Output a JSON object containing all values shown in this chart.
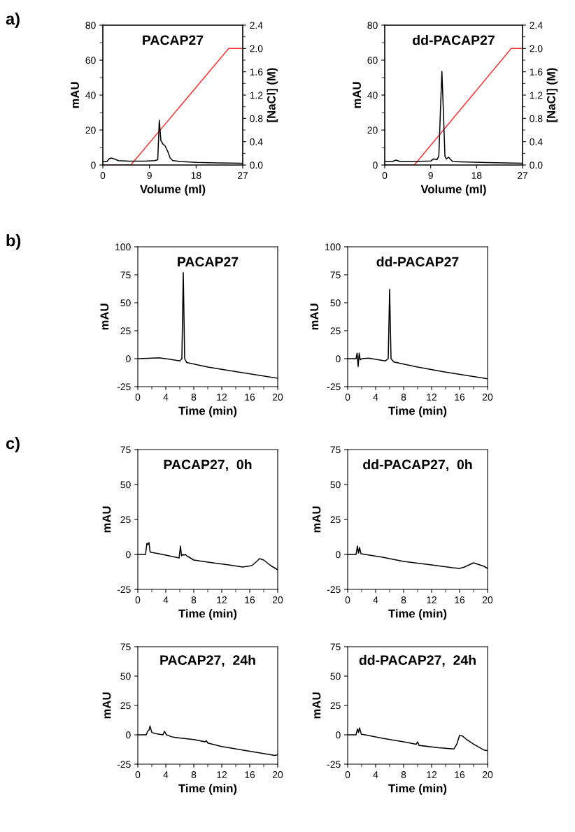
{
  "chart_data": [
    {
      "type": "line",
      "title": "PACAP27",
      "xlabel": "Volume (ml)",
      "ylabel": "mAU",
      "y2label": "[NaCl] (M)",
      "annotations": [
        "a)"
      ],
      "xlim": [
        0,
        27
      ],
      "xticks": [
        0,
        9,
        18,
        27
      ],
      "ylim": [
        0,
        80
      ],
      "yticks": [
        0,
        {
          "value": 10,
          "label": null
        },
        20,
        {
          "value": 30,
          "label": null
        },
        40,
        {
          "value": 50,
          "label": null
        },
        60,
        {
          "value": 70,
          "label": null
        },
        80
      ],
      "y2lim": [
        0,
        2.4
      ],
      "y2ticks": [
        {
          "value": 0,
          "label": "0.0"
        },
        {
          "value": 0.2,
          "label": null
        },
        0.4,
        {
          "value": 0.6,
          "label": null
        },
        0.8,
        {
          "value": 1.0,
          "label": null
        },
        1.2,
        {
          "value": 1.4,
          "label": null
        },
        1.6,
        {
          "value": 1.8,
          "label": null
        },
        {
          "value": 2.0,
          "label": "2.0"
        },
        {
          "value": 2.2,
          "label": null
        },
        2.4
      ],
      "series": [
        {
          "color": "#000000",
          "x": [
            0,
            0.8,
            1.2,
            1.6,
            2.2,
            3,
            5,
            8,
            10,
            10.6,
            10.9,
            11.2,
            11.6,
            12,
            12.5,
            13,
            13.5,
            15,
            18,
            22,
            27
          ],
          "values": [
            2,
            2,
            3.5,
            4,
            3.5,
            2.5,
            2.2,
            2.2,
            2.5,
            3,
            25.6,
            14,
            12,
            11,
            8,
            4,
            2.5,
            2,
            1.5,
            1.2,
            1
          ]
        },
        {
          "color": "#ff3333",
          "axis": "y2",
          "x": [
            0,
            5.4,
            24.3,
            27
          ],
          "values": [
            0,
            0,
            2.0,
            2.0
          ]
        }
      ]
    },
    {
      "type": "line",
      "title": "dd-PACAP27",
      "xlabel": "Volume (ml)",
      "ylabel": "mAU",
      "y2label": "[NaCl] (M)",
      "xlim": [
        0,
        27
      ],
      "xticks": [
        0,
        9,
        18,
        27
      ],
      "ylim": [
        0,
        80
      ],
      "yticks": [
        0,
        {
          "value": 10,
          "label": null
        },
        20,
        {
          "value": 30,
          "label": null
        },
        40,
        {
          "value": 50,
          "label": null
        },
        60,
        {
          "value": 70,
          "label": null
        },
        80
      ],
      "y2lim": [
        0,
        2.4
      ],
      "y2ticks": [
        {
          "value": 0,
          "label": "0.0"
        },
        {
          "value": 0.2,
          "label": null
        },
        0.4,
        {
          "value": 0.6,
          "label": null
        },
        0.8,
        {
          "value": 1.0,
          "label": null
        },
        1.2,
        {
          "value": 1.4,
          "label": null
        },
        1.6,
        {
          "value": 1.8,
          "label": null
        },
        {
          "value": 2.0,
          "label": "2.0"
        },
        {
          "value": 2.2,
          "label": null
        },
        2.4
      ],
      "series": [
        {
          "color": "#000000",
          "x": [
            0,
            1.5,
            2.2,
            3,
            6,
            9,
            9.6,
            10.2,
            10.6,
            10.9,
            11.2,
            11.5,
            11.8,
            12.1,
            12.5,
            12.8,
            13.3,
            15,
            20,
            27
          ],
          "values": [
            2,
            2,
            2.8,
            2,
            2,
            2.3,
            3.5,
            3,
            5,
            30,
            53.6,
            30,
            5,
            3.5,
            4.5,
            3.5,
            2,
            1.8,
            1.4,
            1
          ]
        },
        {
          "color": "#ff3333",
          "axis": "y2",
          "x": [
            0,
            5.8,
            24.8,
            27
          ],
          "values": [
            0,
            0,
            2.0,
            2.0
          ]
        }
      ]
    },
    {
      "type": "line",
      "title": "PACAP27",
      "xlabel": "Time (min)",
      "ylabel": "mAU",
      "annotations": [
        "b)"
      ],
      "xlim": [
        0,
        20
      ],
      "xticks": [
        0,
        {
          "value": 2,
          "label": null
        },
        4,
        {
          "value": 6,
          "label": null
        },
        8,
        {
          "value": 10,
          "label": null
        },
        12,
        {
          "value": 14,
          "label": null
        },
        16,
        {
          "value": 18,
          "label": null
        },
        20
      ],
      "ylim": [
        -25,
        100
      ],
      "yticks": [
        -25,
        0,
        25,
        50,
        75,
        100
      ],
      "series": [
        {
          "color": "#000000",
          "x": [
            0,
            1.5,
            3,
            4.5,
            6,
            6.3,
            6.5,
            6.7,
            7,
            10,
            14,
            20
          ],
          "values": [
            0,
            0.3,
            0.8,
            -0.5,
            -2,
            0,
            77,
            0,
            -3.5,
            -7.5,
            -11.5,
            -17.5
          ]
        }
      ]
    },
    {
      "type": "line",
      "title": "dd-PACAP27",
      "xlabel": "Time (min)",
      "ylabel": "mAU",
      "xlim": [
        0,
        20
      ],
      "xticks": [
        0,
        {
          "value": 2,
          "label": null
        },
        4,
        {
          "value": 6,
          "label": null
        },
        8,
        {
          "value": 10,
          "label": null
        },
        12,
        {
          "value": 14,
          "label": null
        },
        16,
        {
          "value": 18,
          "label": null
        },
        20
      ],
      "ylim": [
        -25,
        100
      ],
      "yticks": [
        -25,
        0,
        25,
        50,
        75,
        100
      ],
      "series": [
        {
          "color": "#000000",
          "x": [
            0,
            1.2,
            1.35,
            1.5,
            1.65,
            1.8,
            2,
            3,
            5.4,
            5.8,
            6.0,
            6.2,
            6.6,
            10,
            14,
            20
          ],
          "values": [
            0,
            0,
            5,
            -7,
            5,
            -1,
            0,
            0.5,
            -2,
            0,
            62,
            0,
            -3,
            -7.5,
            -12,
            -18
          ]
        }
      ]
    },
    {
      "type": "line",
      "title": "PACAP27,  0h",
      "xlabel": "Time (min)",
      "ylabel": "mAU",
      "annotations": [
        "c)"
      ],
      "xlim": [
        0,
        20
      ],
      "xticks": [
        0,
        {
          "value": 2,
          "label": null
        },
        4,
        {
          "value": 6,
          "label": null
        },
        8,
        {
          "value": 10,
          "label": null
        },
        12,
        {
          "value": 14,
          "label": null
        },
        16,
        {
          "value": 18,
          "label": null
        },
        20
      ],
      "ylim": [
        -25,
        75
      ],
      "yticks": [
        -25,
        0,
        25,
        50,
        75
      ],
      "series": [
        {
          "color": "#000000",
          "x": [
            0,
            1.1,
            1.3,
            1.45,
            1.6,
            1.75,
            1.9,
            2.5,
            4,
            5.9,
            6.1,
            6.25,
            6.4,
            6.6,
            6.8,
            7,
            8,
            10,
            13,
            15,
            16.3,
            17,
            17.4,
            18,
            19,
            20
          ],
          "values": [
            0,
            0,
            8,
            7,
            8.5,
            2,
            1.5,
            1,
            -0.5,
            -2.5,
            6,
            -1,
            0,
            -0.5,
            0,
            -1,
            -4,
            -5.5,
            -7.5,
            -9,
            -8,
            -5,
            -3,
            -4,
            -8,
            -11
          ]
        }
      ]
    },
    {
      "type": "line",
      "title": "dd-PACAP27,  0h",
      "xlabel": "Time (min)",
      "ylabel": "mAU",
      "xlim": [
        0,
        20
      ],
      "xticks": [
        0,
        {
          "value": 2,
          "label": null
        },
        4,
        {
          "value": 6,
          "label": null
        },
        8,
        {
          "value": 10,
          "label": null
        },
        12,
        {
          "value": 14,
          "label": null
        },
        16,
        {
          "value": 18,
          "label": null
        },
        20
      ],
      "ylim": [
        -25,
        75
      ],
      "yticks": [
        -25,
        0,
        25,
        50,
        75
      ],
      "series": [
        {
          "color": "#000000",
          "x": [
            0,
            1.2,
            1.4,
            1.55,
            1.7,
            1.9,
            2.5,
            5,
            8,
            12,
            15,
            16,
            16.7,
            18,
            19.5,
            20
          ],
          "values": [
            0,
            0,
            6,
            1,
            5,
            0.5,
            0,
            -2,
            -5,
            -7.5,
            -9.5,
            -10,
            -9,
            -6,
            -8.5,
            -10
          ]
        }
      ]
    },
    {
      "type": "line",
      "title": "PACAP27,  24h",
      "xlabel": "Time (min)",
      "ylabel": "mAU",
      "xlim": [
        0,
        20
      ],
      "xticks": [
        0,
        {
          "value": 2,
          "label": null
        },
        4,
        {
          "value": 6,
          "label": null
        },
        8,
        {
          "value": 10,
          "label": null
        },
        12,
        {
          "value": 14,
          "label": null
        },
        16,
        {
          "value": 18,
          "label": null
        },
        20
      ],
      "ylim": [
        -25,
        75
      ],
      "yticks": [
        -25,
        0,
        25,
        50,
        75
      ],
      "series": [
        {
          "color": "#000000",
          "x": [
            0,
            1.2,
            1.4,
            1.6,
            1.75,
            2,
            2.5,
            3.6,
            3.8,
            4.1,
            5,
            8,
            9.6,
            9.8,
            10,
            12,
            16,
            19.6,
            20
          ],
          "values": [
            0,
            0,
            3,
            4,
            7.5,
            2,
            1,
            0,
            3,
            0,
            -2,
            -4,
            -6,
            -5,
            -7,
            -10,
            -14,
            -17.5,
            -17
          ]
        }
      ]
    },
    {
      "type": "line",
      "title": "dd-PACAP27,  24h",
      "xlabel": "Time (min)",
      "ylabel": "mAU",
      "xlim": [
        0,
        20
      ],
      "xticks": [
        0,
        {
          "value": 2,
          "label": null
        },
        4,
        {
          "value": 6,
          "label": null
        },
        8,
        {
          "value": 10,
          "label": null
        },
        12,
        {
          "value": 14,
          "label": null
        },
        16,
        {
          "value": 18,
          "label": null
        },
        20
      ],
      "ylim": [
        -25,
        75
      ],
      "yticks": [
        -25,
        0,
        25,
        50,
        75
      ],
      "series": [
        {
          "color": "#000000",
          "x": [
            0,
            1.2,
            1.4,
            1.55,
            1.7,
            1.95,
            2.5,
            5,
            8,
            9.8,
            10,
            10.2,
            13,
            15.2,
            15.6,
            16,
            16.4,
            17,
            18,
            19.5,
            20
          ],
          "values": [
            0,
            0,
            5,
            2,
            6,
            0.5,
            0,
            -3,
            -6,
            -8,
            -6,
            -9,
            -11,
            -12,
            -8,
            -0.5,
            -1,
            -4,
            -8,
            -13,
            -13.5
          ]
        }
      ]
    }
  ]
}
